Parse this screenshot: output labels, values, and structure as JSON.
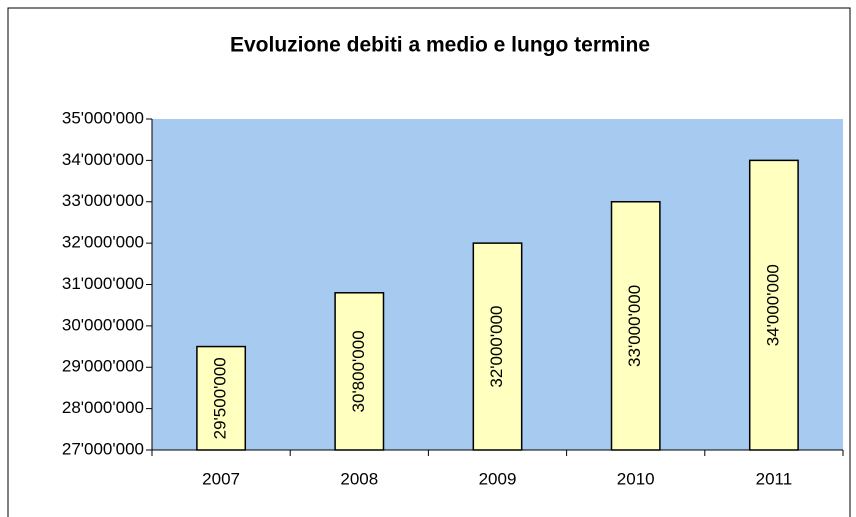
{
  "chart_data": {
    "type": "bar",
    "title": "Evoluzione debiti a medio e lungo termine",
    "categories": [
      "2007",
      "2008",
      "2009",
      "2010",
      "2011"
    ],
    "values": [
      29500000,
      30800000,
      32000000,
      33000000,
      34000000
    ],
    "value_labels": [
      "29'500'000",
      "30'800'000",
      "32'000'000",
      "33'000'000",
      "34'000'000"
    ],
    "color": "#ffffc0",
    "plot_background": "#a6caf0",
    "ylim": [
      27000000,
      35000000
    ],
    "yticks": [
      {
        "value": 27000000,
        "label": "27'000'000"
      },
      {
        "value": 28000000,
        "label": "28'000'000"
      },
      {
        "value": 29000000,
        "label": "29'000'000"
      },
      {
        "value": 30000000,
        "label": "30'000'000"
      },
      {
        "value": 31000000,
        "label": "31'000'000"
      },
      {
        "value": 32000000,
        "label": "32'000'000"
      },
      {
        "value": 33000000,
        "label": "33'000'000"
      },
      {
        "value": 34000000,
        "label": "34'000'000"
      },
      {
        "value": 35000000,
        "label": "35'000'000"
      }
    ],
    "grid": false
  }
}
